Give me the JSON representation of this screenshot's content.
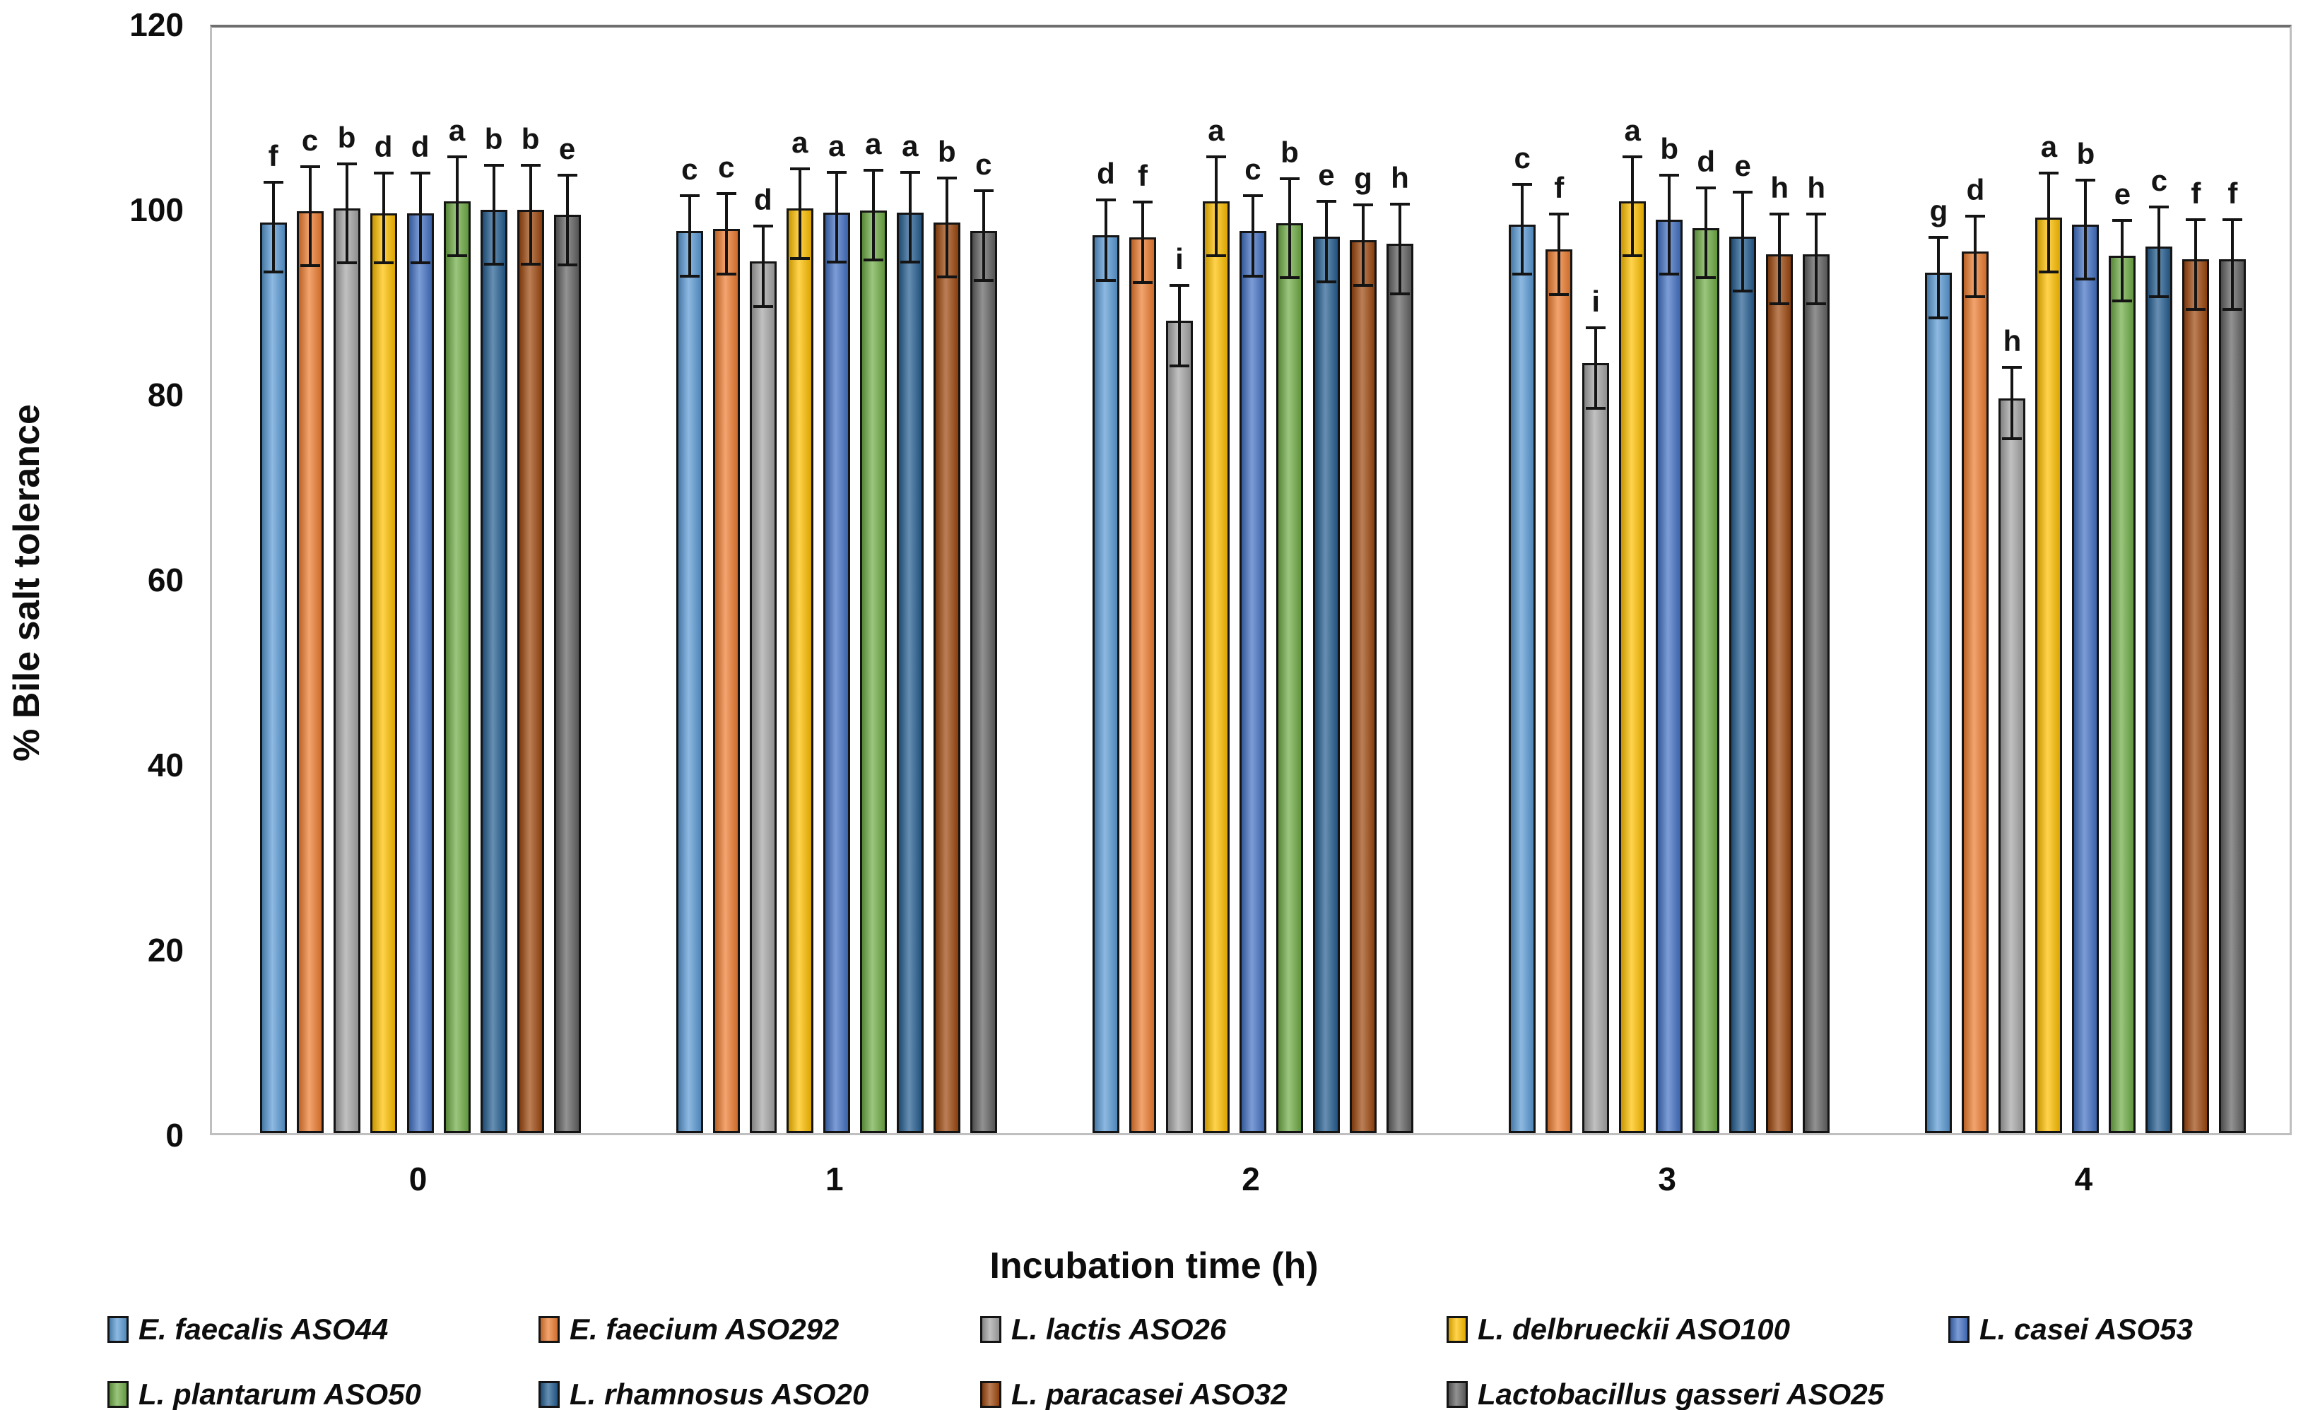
{
  "axes": {
    "x_title": "Incubation time (h)",
    "y_title": "% Bile salt tolerance"
  },
  "chart_data": {
    "type": "bar",
    "title": "",
    "xlabel": "Incubation time (h)",
    "ylabel": "% Bile salt tolerance",
    "ylim": [
      0,
      120
    ],
    "yticks": [
      0,
      20,
      40,
      60,
      80,
      100,
      120
    ],
    "categories": [
      "0",
      "1",
      "2",
      "3",
      "4"
    ],
    "grid": false,
    "legend_position": "bottom",
    "error_bars": true,
    "significance_letters": true,
    "series": [
      {
        "name": "E. faecalis ASO44",
        "color": "#5B9BD5",
        "values": [
          98.4,
          97.5,
          97.0,
          98.2,
          93.0
        ],
        "errors": [
          5,
          4.5,
          4.5,
          5,
          4.5
        ],
        "letters": [
          "f",
          "c",
          "d",
          "c",
          "g"
        ]
      },
      {
        "name": "E. faecium ASO292",
        "color": "#ED7D31",
        "values": [
          99.6,
          97.7,
          96.8,
          95.5,
          95.3
        ],
        "errors": [
          5.5,
          4.5,
          4.5,
          4.5,
          4.5
        ],
        "letters": [
          "c",
          "c",
          "f",
          "f",
          "d"
        ]
      },
      {
        "name": "L. lactis ASO26",
        "color": "#A6A6A6",
        "values": [
          99.9,
          94.2,
          87.8,
          83.2,
          79.4
        ],
        "errors": [
          5.5,
          4.5,
          4.5,
          4.5,
          4
        ],
        "letters": [
          "b",
          "d",
          "i",
          "i",
          "h"
        ]
      },
      {
        "name": "L. delbrueckii ASO100",
        "color": "#FFC000",
        "values": [
          99.4,
          99.9,
          100.7,
          100.7,
          98.9
        ],
        "errors": [
          5,
          5,
          5.5,
          5.5,
          5.5
        ],
        "letters": [
          "d",
          "a",
          "a",
          "a",
          "a"
        ]
      },
      {
        "name": "L. casei ASO53",
        "color": "#4472C4",
        "values": [
          99.4,
          99.5,
          97.5,
          98.7,
          98.2
        ],
        "errors": [
          5,
          5,
          4.5,
          5.5,
          5.5
        ],
        "letters": [
          "d",
          "a",
          "c",
          "b",
          "b"
        ]
      },
      {
        "name": "L. plantarum ASO50",
        "color": "#70AD47",
        "values": [
          100.7,
          99.7,
          98.3,
          97.8,
          94.8
        ],
        "errors": [
          5.5,
          5,
          5.5,
          5,
          4.5
        ],
        "letters": [
          "a",
          "a",
          "b",
          "d",
          "e"
        ]
      },
      {
        "name": "L. rhamnosus ASO20",
        "color": "#255E91",
        "values": [
          99.8,
          99.5,
          96.9,
          96.9,
          95.8
        ],
        "errors": [
          5.5,
          5,
          4.5,
          5.5,
          5
        ],
        "letters": [
          "b",
          "a",
          "e",
          "e",
          "c"
        ]
      },
      {
        "name": "L. paracasei ASO32",
        "color": "#9E480E",
        "values": [
          99.8,
          98.4,
          96.5,
          95.0,
          94.4
        ],
        "errors": [
          5.5,
          5.5,
          4.5,
          5,
          5
        ],
        "letters": [
          "b",
          "b",
          "g",
          "h",
          "f"
        ]
      },
      {
        "name": "Lactobacillus gasseri ASO25",
        "color": "#636363",
        "values": [
          99.2,
          97.5,
          96.1,
          95.0,
          94.4
        ],
        "errors": [
          5,
          5,
          5,
          5,
          5
        ],
        "letters": [
          "e",
          "c",
          "h",
          "h",
          "f"
        ]
      }
    ]
  }
}
